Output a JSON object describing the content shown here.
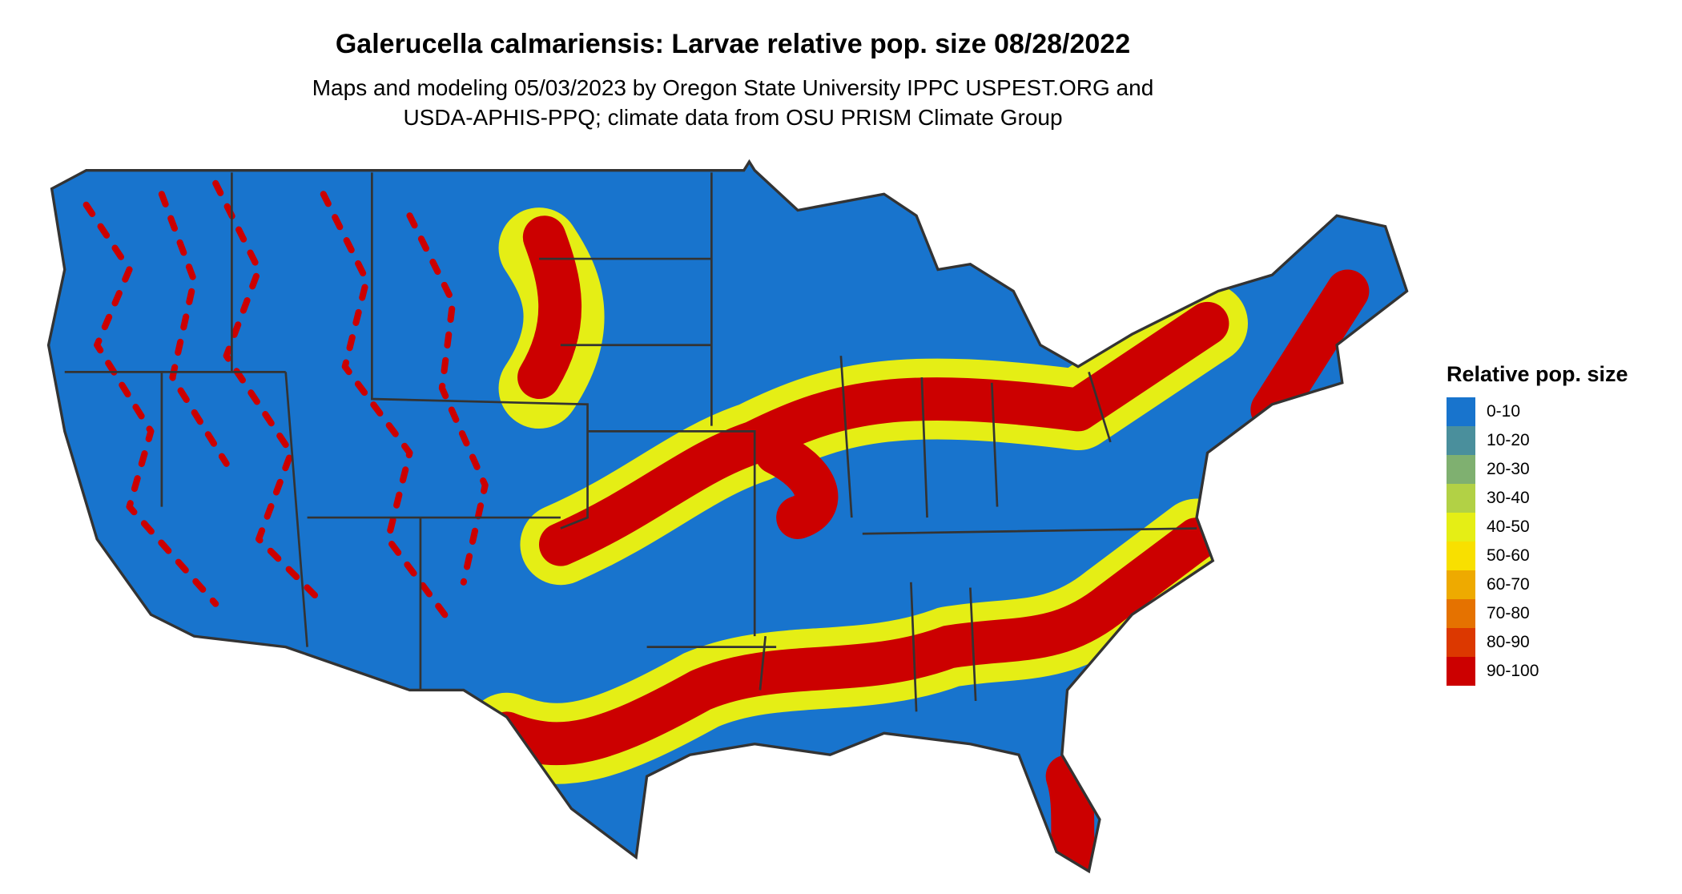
{
  "title": "Galerucella calmariensis: Larvae relative pop. size 08/28/2022",
  "subtitle_lines": [
    "Maps and modeling 05/03/2023 by Oregon State University IPPC USPEST.ORG and",
    "USDA-APHIS-PPQ; climate data from OSU PRISM Climate Group"
  ],
  "legend": {
    "title": "Relative pop. size",
    "items": [
      {
        "label": "0-10",
        "color": "#1874CD"
      },
      {
        "label": "10-20",
        "color": "#4A8F9C"
      },
      {
        "label": "20-30",
        "color": "#7FB070"
      },
      {
        "label": "30-40",
        "color": "#B2D145"
      },
      {
        "label": "40-50",
        "color": "#E5EE15"
      },
      {
        "label": "50-60",
        "color": "#F8E000"
      },
      {
        "label": "60-70",
        "color": "#EEAA00"
      },
      {
        "label": "70-80",
        "color": "#E57200"
      },
      {
        "label": "80-90",
        "color": "#DC3800"
      },
      {
        "label": "90-100",
        "color": "#CC0000"
      }
    ]
  },
  "map": {
    "region": "Contiguous United States",
    "border_color": "#333333"
  }
}
